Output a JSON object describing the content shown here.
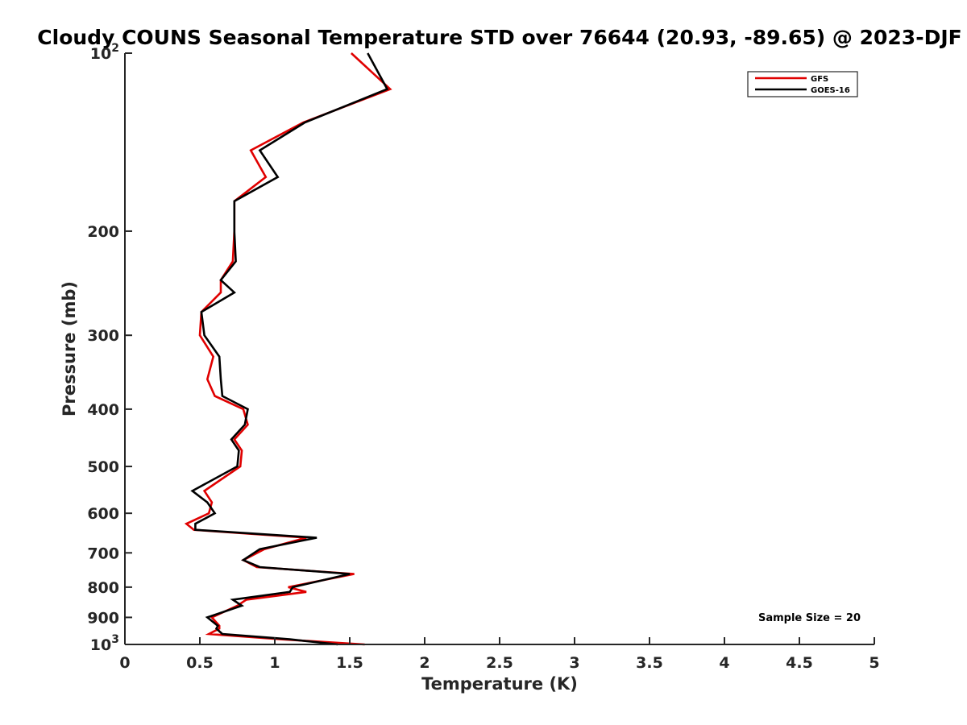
{
  "chart_data": {
    "type": "line",
    "title": "Cloudy COUNS Seasonal Temperature STD over 76644 (20.93, -89.65) @ 2023-DJF",
    "xlabel": "Temperature (K)",
    "ylabel": "Pressure (mb)",
    "xlim": [
      0,
      5
    ],
    "ylim": [
      100,
      1000
    ],
    "yscale": "log",
    "yreversed": true,
    "x_ticks": [
      "0",
      "0.5",
      "1",
      "1.5",
      "2",
      "2.5",
      "3",
      "3.5",
      "4",
      "4.5",
      "5"
    ],
    "y_ticks": [
      {
        "value": 100,
        "base": "10",
        "exp": "2"
      },
      {
        "value": 200,
        "label": "200"
      },
      {
        "value": 300,
        "label": "300"
      },
      {
        "value": 400,
        "label": "400"
      },
      {
        "value": 500,
        "label": "500"
      },
      {
        "value": 600,
        "label": "600"
      },
      {
        "value": 700,
        "label": "700"
      },
      {
        "value": 800,
        "label": "800"
      },
      {
        "value": 900,
        "label": "900"
      },
      {
        "value": 1000,
        "base": "10",
        "exp": "3"
      }
    ],
    "series": [
      {
        "name": "GFS",
        "color": "#e00000",
        "points": [
          [
            1.51,
            100
          ],
          [
            1.77,
            115
          ],
          [
            1.19,
            131
          ],
          [
            0.84,
            146
          ],
          [
            0.94,
            162
          ],
          [
            0.73,
            178
          ],
          [
            0.73,
            200
          ],
          [
            0.72,
            225
          ],
          [
            0.64,
            242
          ],
          [
            0.64,
            254
          ],
          [
            0.51,
            274
          ],
          [
            0.5,
            300
          ],
          [
            0.59,
            326
          ],
          [
            0.55,
            356
          ],
          [
            0.6,
            380
          ],
          [
            0.79,
            400
          ],
          [
            0.82,
            425
          ],
          [
            0.73,
            450
          ],
          [
            0.78,
            470
          ],
          [
            0.77,
            500
          ],
          [
            0.53,
            550
          ],
          [
            0.58,
            575
          ],
          [
            0.56,
            600
          ],
          [
            0.41,
            625
          ],
          [
            0.46,
            640
          ],
          [
            1.21,
            660
          ],
          [
            0.93,
            690
          ],
          [
            0.79,
            720
          ],
          [
            0.88,
            740
          ],
          [
            1.53,
            760
          ],
          [
            1.09,
            800
          ],
          [
            1.21,
            815
          ],
          [
            0.81,
            840
          ],
          [
            0.75,
            860
          ],
          [
            0.58,
            900
          ],
          [
            0.63,
            930
          ],
          [
            0.63,
            940
          ],
          [
            0.56,
            960
          ],
          [
            1.04,
            980
          ],
          [
            1.6,
            1000
          ]
        ]
      },
      {
        "name": "GOES-16",
        "color": "#000000",
        "points": [
          [
            1.62,
            100
          ],
          [
            1.75,
            115
          ],
          [
            1.2,
            131
          ],
          [
            0.9,
            146
          ],
          [
            1.02,
            162
          ],
          [
            0.73,
            178
          ],
          [
            0.73,
            200
          ],
          [
            0.74,
            225
          ],
          [
            0.64,
            242
          ],
          [
            0.73,
            254
          ],
          [
            0.51,
            274
          ],
          [
            0.53,
            300
          ],
          [
            0.63,
            326
          ],
          [
            0.64,
            356
          ],
          [
            0.65,
            380
          ],
          [
            0.82,
            400
          ],
          [
            0.8,
            425
          ],
          [
            0.71,
            450
          ],
          [
            0.76,
            470
          ],
          [
            0.75,
            500
          ],
          [
            0.45,
            550
          ],
          [
            0.55,
            575
          ],
          [
            0.6,
            600
          ],
          [
            0.47,
            625
          ],
          [
            0.47,
            640
          ],
          [
            1.28,
            660
          ],
          [
            0.9,
            690
          ],
          [
            0.79,
            720
          ],
          [
            0.9,
            740
          ],
          [
            1.5,
            760
          ],
          [
            1.12,
            800
          ],
          [
            1.1,
            815
          ],
          [
            0.72,
            840
          ],
          [
            0.78,
            860
          ],
          [
            0.55,
            900
          ],
          [
            0.62,
            930
          ],
          [
            0.61,
            940
          ],
          [
            0.65,
            960
          ],
          [
            1.1,
            980
          ],
          [
            1.42,
            1000
          ]
        ]
      }
    ],
    "legend": {
      "position": "top-right",
      "entries": [
        "GFS",
        "GOES-16"
      ]
    },
    "annotations": [
      {
        "text": "Sample Size = 20",
        "position": "bottom-right"
      }
    ]
  }
}
